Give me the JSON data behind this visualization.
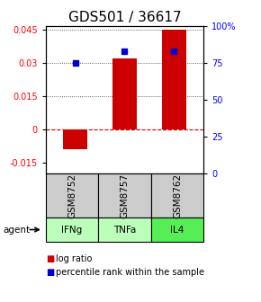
{
  "title": "GDS501 / 36617",
  "samples": [
    "GSM8752",
    "GSM8757",
    "GSM8762"
  ],
  "agents": [
    "IFNg",
    "TNFa",
    "IL4"
  ],
  "log_ratios": [
    -0.009,
    0.032,
    0.045
  ],
  "percentile_ranks_pct": [
    75,
    82.5,
    83
  ],
  "bar_color": "#cc0000",
  "dot_color": "#0000cc",
  "ylim_left": [
    -0.02,
    0.047
  ],
  "ylim_right": [
    0,
    100
  ],
  "yticks_left": [
    -0.015,
    0.0,
    0.015,
    0.03,
    0.045
  ],
  "ytick_labels_left": [
    "-0.015",
    "0",
    "0.015",
    "0.03",
    "0.045"
  ],
  "yticks_right_pct": [
    0,
    25,
    50,
    75,
    100
  ],
  "ytick_labels_right": [
    "0",
    "25",
    "50",
    "75",
    "100%"
  ],
  "zero_line_color": "#cc0000",
  "grid_color": "#000000",
  "sample_bg_color": "#cccccc",
  "agent_bg_colors": [
    "#bbffbb",
    "#bbffbb",
    "#55ee55"
  ],
  "title_fontsize": 11,
  "label_fontsize": 7.5,
  "tick_fontsize": 7,
  "legend_fontsize": 7,
  "bar_width": 0.5
}
